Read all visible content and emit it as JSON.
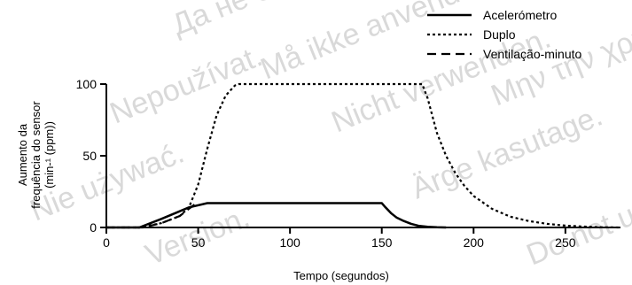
{
  "watermark": {
    "lines": [
      "Да не се използва.",
      "Må ikke anvendes.",
      "Nepoužívat.",
      "Nicht verwenden.",
      "Ärge kasutage.",
      "Μην την χρησιμοποιείτε.",
      "Nie używać.",
      "Version.",
      "Do not use."
    ],
    "color": "#d9d9d9"
  },
  "chart_data": {
    "type": "line",
    "title": "",
    "xlabel": "Tempo (segundos)",
    "ylabel_lines": [
      "Aumento da",
      "frequência do sensor",
      "(min-¹ (ppm))"
    ],
    "xlim": [
      0,
      280
    ],
    "ylim": [
      0,
      100
    ],
    "xticks": [
      0,
      50,
      100,
      150,
      200,
      250
    ],
    "yticks": [
      0,
      50,
      100
    ],
    "grid": false,
    "legend_position": "top-right",
    "series": [
      {
        "name": "Acelerómetro",
        "style": "solid",
        "x": [
          0,
          18,
          30,
          45,
          55,
          150,
          152,
          155,
          158,
          162,
          166,
          170,
          175,
          180,
          185
        ],
        "y": [
          0,
          0,
          6,
          14,
          17,
          17,
          14,
          10,
          7,
          4.5,
          2.5,
          1.2,
          0.5,
          0.1,
          0
        ]
      },
      {
        "name": "Duplo",
        "style": "dotted",
        "x": [
          0,
          18,
          30,
          40,
          45,
          50,
          55,
          60,
          65,
          70,
          72,
          172,
          175,
          180,
          185,
          190,
          195,
          200,
          210,
          220,
          230,
          240,
          250,
          260,
          270,
          280
        ],
        "y": [
          0,
          0,
          3,
          8,
          14,
          30,
          55,
          78,
          92,
          99,
          100,
          100,
          90,
          66,
          50,
          38,
          29,
          22,
          13,
          7.5,
          4.5,
          2.5,
          1.3,
          0.6,
          0.2,
          0
        ]
      },
      {
        "name": "Ventilação-minuto",
        "style": "dashed",
        "x": [
          0,
          20,
          30,
          40,
          45,
          48
        ],
        "y": [
          0,
          0,
          3,
          8,
          13,
          16
        ]
      }
    ]
  }
}
